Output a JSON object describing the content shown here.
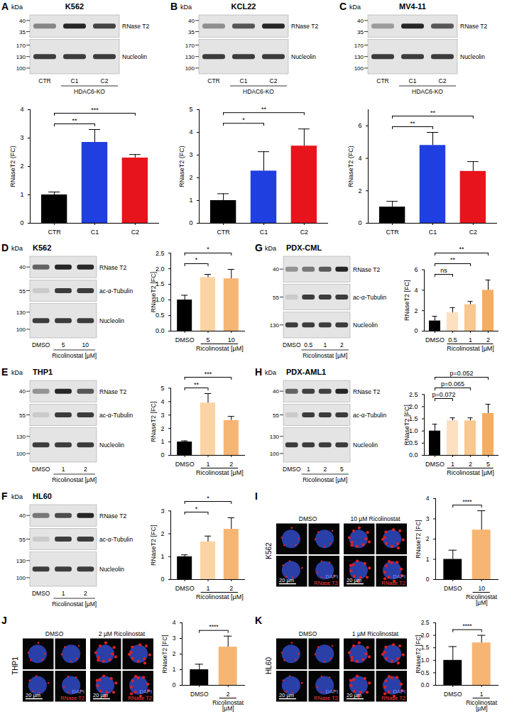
{
  "chart_data": [
    {
      "panel": "A",
      "type": "bar",
      "title": "K562",
      "categories": [
        "CTR",
        "C1",
        "C2"
      ],
      "values": [
        1.0,
        2.85,
        2.3
      ],
      "errors": [
        0.1,
        0.45,
        0.12
      ],
      "colors": [
        "#000000",
        "#1f3fe0",
        "#e8141c"
      ],
      "y_label": "RNaseT2 (FC)",
      "ylim": [
        0,
        4
      ],
      "yticks": [
        0,
        1,
        2,
        3,
        4
      ],
      "annotations": [
        {
          "from": 0,
          "to": 1,
          "text": "**"
        },
        {
          "from": 0,
          "to": 2,
          "text": "***"
        }
      ],
      "blot": {
        "unit": "kDa",
        "lanes": [
          "CTR",
          "C1",
          "C2"
        ],
        "group": "HDAC6-KO",
        "rows": [
          {
            "protein": "RNase T2",
            "markers": [
              40,
              35
            ]
          },
          {
            "protein": "Nucleolin",
            "markers": [
              170,
              130,
              100
            ]
          }
        ]
      }
    },
    {
      "panel": "B",
      "type": "bar",
      "title": "KCL22",
      "categories": [
        "CTR",
        "C1",
        "C2"
      ],
      "values": [
        1.0,
        2.3,
        3.4
      ],
      "errors": [
        0.3,
        0.85,
        0.75
      ],
      "colors": [
        "#000000",
        "#1f3fe0",
        "#e8141c"
      ],
      "y_label": "RNaseT2 (FC)",
      "ylim": [
        0,
        5
      ],
      "yticks": [
        0,
        1,
        2,
        3,
        4,
        5
      ],
      "annotations": [
        {
          "from": 0,
          "to": 1,
          "text": "*"
        },
        {
          "from": 0,
          "to": 2,
          "text": "**"
        }
      ],
      "blot": {
        "unit": "kDa",
        "lanes": [
          "CTR",
          "C1",
          "C2"
        ],
        "group": "HDAC6-KO",
        "rows": [
          {
            "protein": "RNase T2",
            "markers": [
              40,
              35
            ]
          },
          {
            "protein": "Nucleolin",
            "markers": [
              170,
              130,
              100
            ]
          }
        ]
      }
    },
    {
      "panel": "C",
      "type": "bar",
      "title": "MV4-11",
      "categories": [
        "CTR",
        "C1",
        "C2"
      ],
      "values": [
        1.0,
        4.8,
        3.2
      ],
      "errors": [
        0.35,
        0.8,
        0.6
      ],
      "colors": [
        "#000000",
        "#1f3fe0",
        "#e8141c"
      ],
      "y_label": "RNaseT2 (FC)",
      "ylim": [
        0,
        7
      ],
      "yticks": [
        0,
        2,
        4,
        6
      ],
      "annotations": [
        {
          "from": 0,
          "to": 1,
          "text": "**"
        },
        {
          "from": 0,
          "to": 2,
          "text": "**"
        }
      ],
      "blot": {
        "unit": "kDa",
        "lanes": [
          "CTR",
          "C1",
          "C2"
        ],
        "group": "HDAC6-KO",
        "rows": [
          {
            "protein": "RNase T2",
            "markers": [
              40,
              35
            ]
          },
          {
            "protein": "Nucleolin",
            "markers": [
              170,
              130,
              100
            ]
          }
        ]
      }
    },
    {
      "panel": "D",
      "type": "bar",
      "title": "K562",
      "categories": [
        "DMSO",
        "5",
        "10"
      ],
      "values": [
        1.0,
        1.72,
        1.68
      ],
      "errors": [
        0.15,
        0.1,
        0.3
      ],
      "colors": [
        "#000000",
        "#fbd3a5",
        "#f7b574"
      ],
      "y_label": "RNaseT2 [FC]",
      "x_label": "Ricolinostat [µM]",
      "ylim": [
        0,
        2.5
      ],
      "yticks": [
        {
          "value": 0,
          "label": "0.0"
        },
        0.5,
        {
          "value": 1,
          "label": "1.0"
        },
        1.5,
        {
          "value": 2,
          "label": "2.0"
        },
        2.5
      ],
      "annotations": [
        {
          "from": 0,
          "to": 1,
          "text": "*"
        },
        {
          "from": 0,
          "to": 2,
          "text": "*"
        }
      ],
      "blot": {
        "unit": "kDa",
        "lanes": [
          "DMSO",
          "5",
          "10"
        ],
        "group": "Ricolinostat [µM]",
        "rows": [
          {
            "protein": "RNase T2",
            "markers": [
              40
            ]
          },
          {
            "protein": "ac-α-Tubulin",
            "markers": [
              55
            ]
          },
          {
            "protein": "Nucleolin",
            "markers": [
              130,
              100
            ]
          }
        ]
      }
    },
    {
      "panel": "E",
      "type": "bar",
      "title": "THP1",
      "categories": [
        "DMSO",
        "1",
        "2"
      ],
      "values": [
        1.0,
        3.9,
        2.6
      ],
      "errors": [
        0.08,
        0.7,
        0.3
      ],
      "colors": [
        "#000000",
        "#fbd3a5",
        "#f7b574"
      ],
      "y_label": "RNaseT2 [FC]",
      "x_label": "Ricolinostat [µM]",
      "ylim": [
        0,
        5
      ],
      "yticks": [
        0,
        1,
        2,
        3,
        4,
        5
      ],
      "annotations": [
        {
          "from": 0,
          "to": 1,
          "text": "**"
        },
        {
          "from": 0,
          "to": 2,
          "text": "***"
        }
      ],
      "blot": {
        "unit": "kDa",
        "lanes": [
          "DMSO",
          "1",
          "2"
        ],
        "group": "Ricolinostat [µM]",
        "rows": [
          {
            "protein": "RNase T2",
            "markers": [
              40
            ]
          },
          {
            "protein": "ac-α-Tubulin",
            "markers": [
              55
            ]
          },
          {
            "protein": "Nucleolin",
            "markers": [
              130,
              100
            ]
          }
        ]
      }
    },
    {
      "panel": "F",
      "type": "bar",
      "title": "HL60",
      "categories": [
        "DMSO",
        "1",
        "2"
      ],
      "values": [
        1.0,
        1.65,
        2.2
      ],
      "errors": [
        0.08,
        0.25,
        0.5
      ],
      "colors": [
        "#000000",
        "#fbd3a5",
        "#f7b574"
      ],
      "y_label": "RNaseT2 [FC]",
      "x_label": "Ricolinostat [µM]",
      "ylim": [
        0,
        3
      ],
      "yticks": [
        0,
        1,
        2,
        3
      ],
      "annotations": [
        {
          "from": 0,
          "to": 1,
          "text": "*"
        },
        {
          "from": 0,
          "to": 2,
          "text": "*"
        }
      ],
      "blot": {
        "unit": "kDa",
        "lanes": [
          "DMSO",
          "1",
          "2"
        ],
        "group": "Ricolinostat [µM]",
        "rows": [
          {
            "protein": "RNase T2",
            "markers": [
              40
            ]
          },
          {
            "protein": "ac-α-Tubulin",
            "markers": [
              55
            ]
          },
          {
            "protein": "Nucleolin",
            "markers": [
              130,
              100
            ]
          }
        ]
      }
    },
    {
      "panel": "G",
      "type": "bar",
      "title": "PDX-CML",
      "categories": [
        "DMSO",
        "0.5",
        "1",
        "2"
      ],
      "values": [
        1.0,
        1.8,
        2.6,
        4.0
      ],
      "errors": [
        0.45,
        0.5,
        0.3,
        1.0
      ],
      "colors": [
        "#000000",
        "#fde0c0",
        "#f9c790",
        "#f5ad60"
      ],
      "y_label": "RNaseT2 [FC]",
      "x_label": "Ricolinostat [µM]",
      "ylim": [
        0,
        6
      ],
      "yticks": [
        0,
        2,
        4,
        6
      ],
      "annotations": [
        {
          "from": 0,
          "to": 1,
          "text": "ns"
        },
        {
          "from": 0,
          "to": 2,
          "text": "**"
        },
        {
          "from": 0,
          "to": 3,
          "text": "**"
        }
      ],
      "blot": {
        "unit": "kDa",
        "lanes": [
          "DMSO",
          "0.5",
          "1",
          "2"
        ],
        "group": "Ricolinostat [µM]",
        "rows": [
          {
            "protein": "RNase T2",
            "markers": [
              40
            ]
          },
          {
            "protein": "ac-α-Tubulin",
            "markers": [
              55
            ]
          },
          {
            "protein": "Nucleolin",
            "markers": [
              130
            ]
          }
        ]
      }
    },
    {
      "panel": "H",
      "type": "bar",
      "title": "PDX-AML1",
      "categories": [
        "DMSO",
        "1",
        "2",
        "5"
      ],
      "values": [
        1.0,
        1.42,
        1.42,
        1.72
      ],
      "errors": [
        0.28,
        0.12,
        0.12,
        0.38
      ],
      "colors": [
        "#000000",
        "#fde0c0",
        "#f9c790",
        "#f5ad60"
      ],
      "y_label": "RNaseT2 [FC]",
      "x_label": "Ricolinostat [µM]",
      "ylim": [
        0,
        2.5
      ],
      "yticks": [
        {
          "value": 0,
          "label": "0.0"
        },
        0.5,
        {
          "value": 1,
          "label": "1.0"
        },
        1.5,
        {
          "value": 2,
          "label": "2.0"
        },
        2.5
      ],
      "annotations": [
        {
          "from": 0,
          "to": 1,
          "text": "p=0.072"
        },
        {
          "from": 0,
          "to": 2,
          "text": "p=0.065"
        },
        {
          "from": 0,
          "to": 3,
          "text": "p=0.052"
        }
      ],
      "blot": {
        "unit": "kDa",
        "lanes": [
          "DMSO",
          "1",
          "2",
          "5"
        ],
        "group": "Ricolinostat [µM]",
        "rows": [
          {
            "protein": "RNase T2",
            "markers": [
              40
            ]
          },
          {
            "protein": "ac-α-Tubulin",
            "markers": [
              55
            ]
          },
          {
            "protein": "Nucleolin",
            "markers": [
              130,
              100
            ]
          }
        ]
      }
    },
    {
      "panel": "I",
      "type": "bar",
      "title": "K562",
      "categories": [
        "DMSO",
        "10"
      ],
      "values": [
        1.0,
        2.45
      ],
      "errors": [
        0.45,
        0.95
      ],
      "colors": [
        "#000000",
        "#f7b574"
      ],
      "y_label": "RNaseT2 [FC]",
      "x_label": "Ricolinostat [µM]",
      "ylim": [
        0,
        4
      ],
      "yticks": [
        0,
        1,
        2,
        3,
        4
      ],
      "annotations": [
        {
          "from": 0,
          "to": 1,
          "text": "****"
        }
      ],
      "images": {
        "conditions": [
          "DMSO",
          "10 µM Ricolinostat"
        ],
        "stains": [
          "DAPI",
          "RNase T2"
        ],
        "scale_bar": "20 µm"
      }
    },
    {
      "panel": "J",
      "type": "bar",
      "title": "THP1",
      "categories": [
        "DMSO",
        "2"
      ],
      "values": [
        1.0,
        2.45
      ],
      "errors": [
        0.35,
        0.7
      ],
      "colors": [
        "#000000",
        "#f7b574"
      ],
      "y_label": "RNaseT2 [FC]",
      "x_label": "Ricolinostat [µM]",
      "ylim": [
        0,
        4
      ],
      "yticks": [
        0,
        1,
        2,
        3,
        4
      ],
      "annotations": [
        {
          "from": 0,
          "to": 1,
          "text": "****"
        }
      ],
      "images": {
        "conditions": [
          "DMSO",
          "2 µM Ricolinostat"
        ],
        "stains": [
          "DAPI",
          "RNase T2"
        ],
        "scale_bar": "20 µm"
      }
    },
    {
      "panel": "K",
      "type": "bar",
      "title": "HL60",
      "categories": [
        "DMSO",
        "1"
      ],
      "values": [
        1.0,
        1.7
      ],
      "errors": [
        0.55,
        0.3
      ],
      "colors": [
        "#000000",
        "#f7b574"
      ],
      "y_label": "RNaseT2 [FC]",
      "x_label": "Ricolinostat [µM]",
      "ylim": [
        0,
        2.5
      ],
      "yticks": [
        {
          "value": 0,
          "label": "0.0"
        },
        0.5,
        {
          "value": 1,
          "label": "1.0"
        },
        1.5,
        {
          "value": 2,
          "label": "2.0"
        },
        2.5
      ],
      "annotations": [
        {
          "from": 0,
          "to": 1,
          "text": "****"
        }
      ],
      "images": {
        "conditions": [
          "DMSO",
          "1 µM Ricolinostat"
        ],
        "stains": [
          "DAPI",
          "RNase T2"
        ],
        "scale_bar": "20 µm"
      }
    }
  ]
}
